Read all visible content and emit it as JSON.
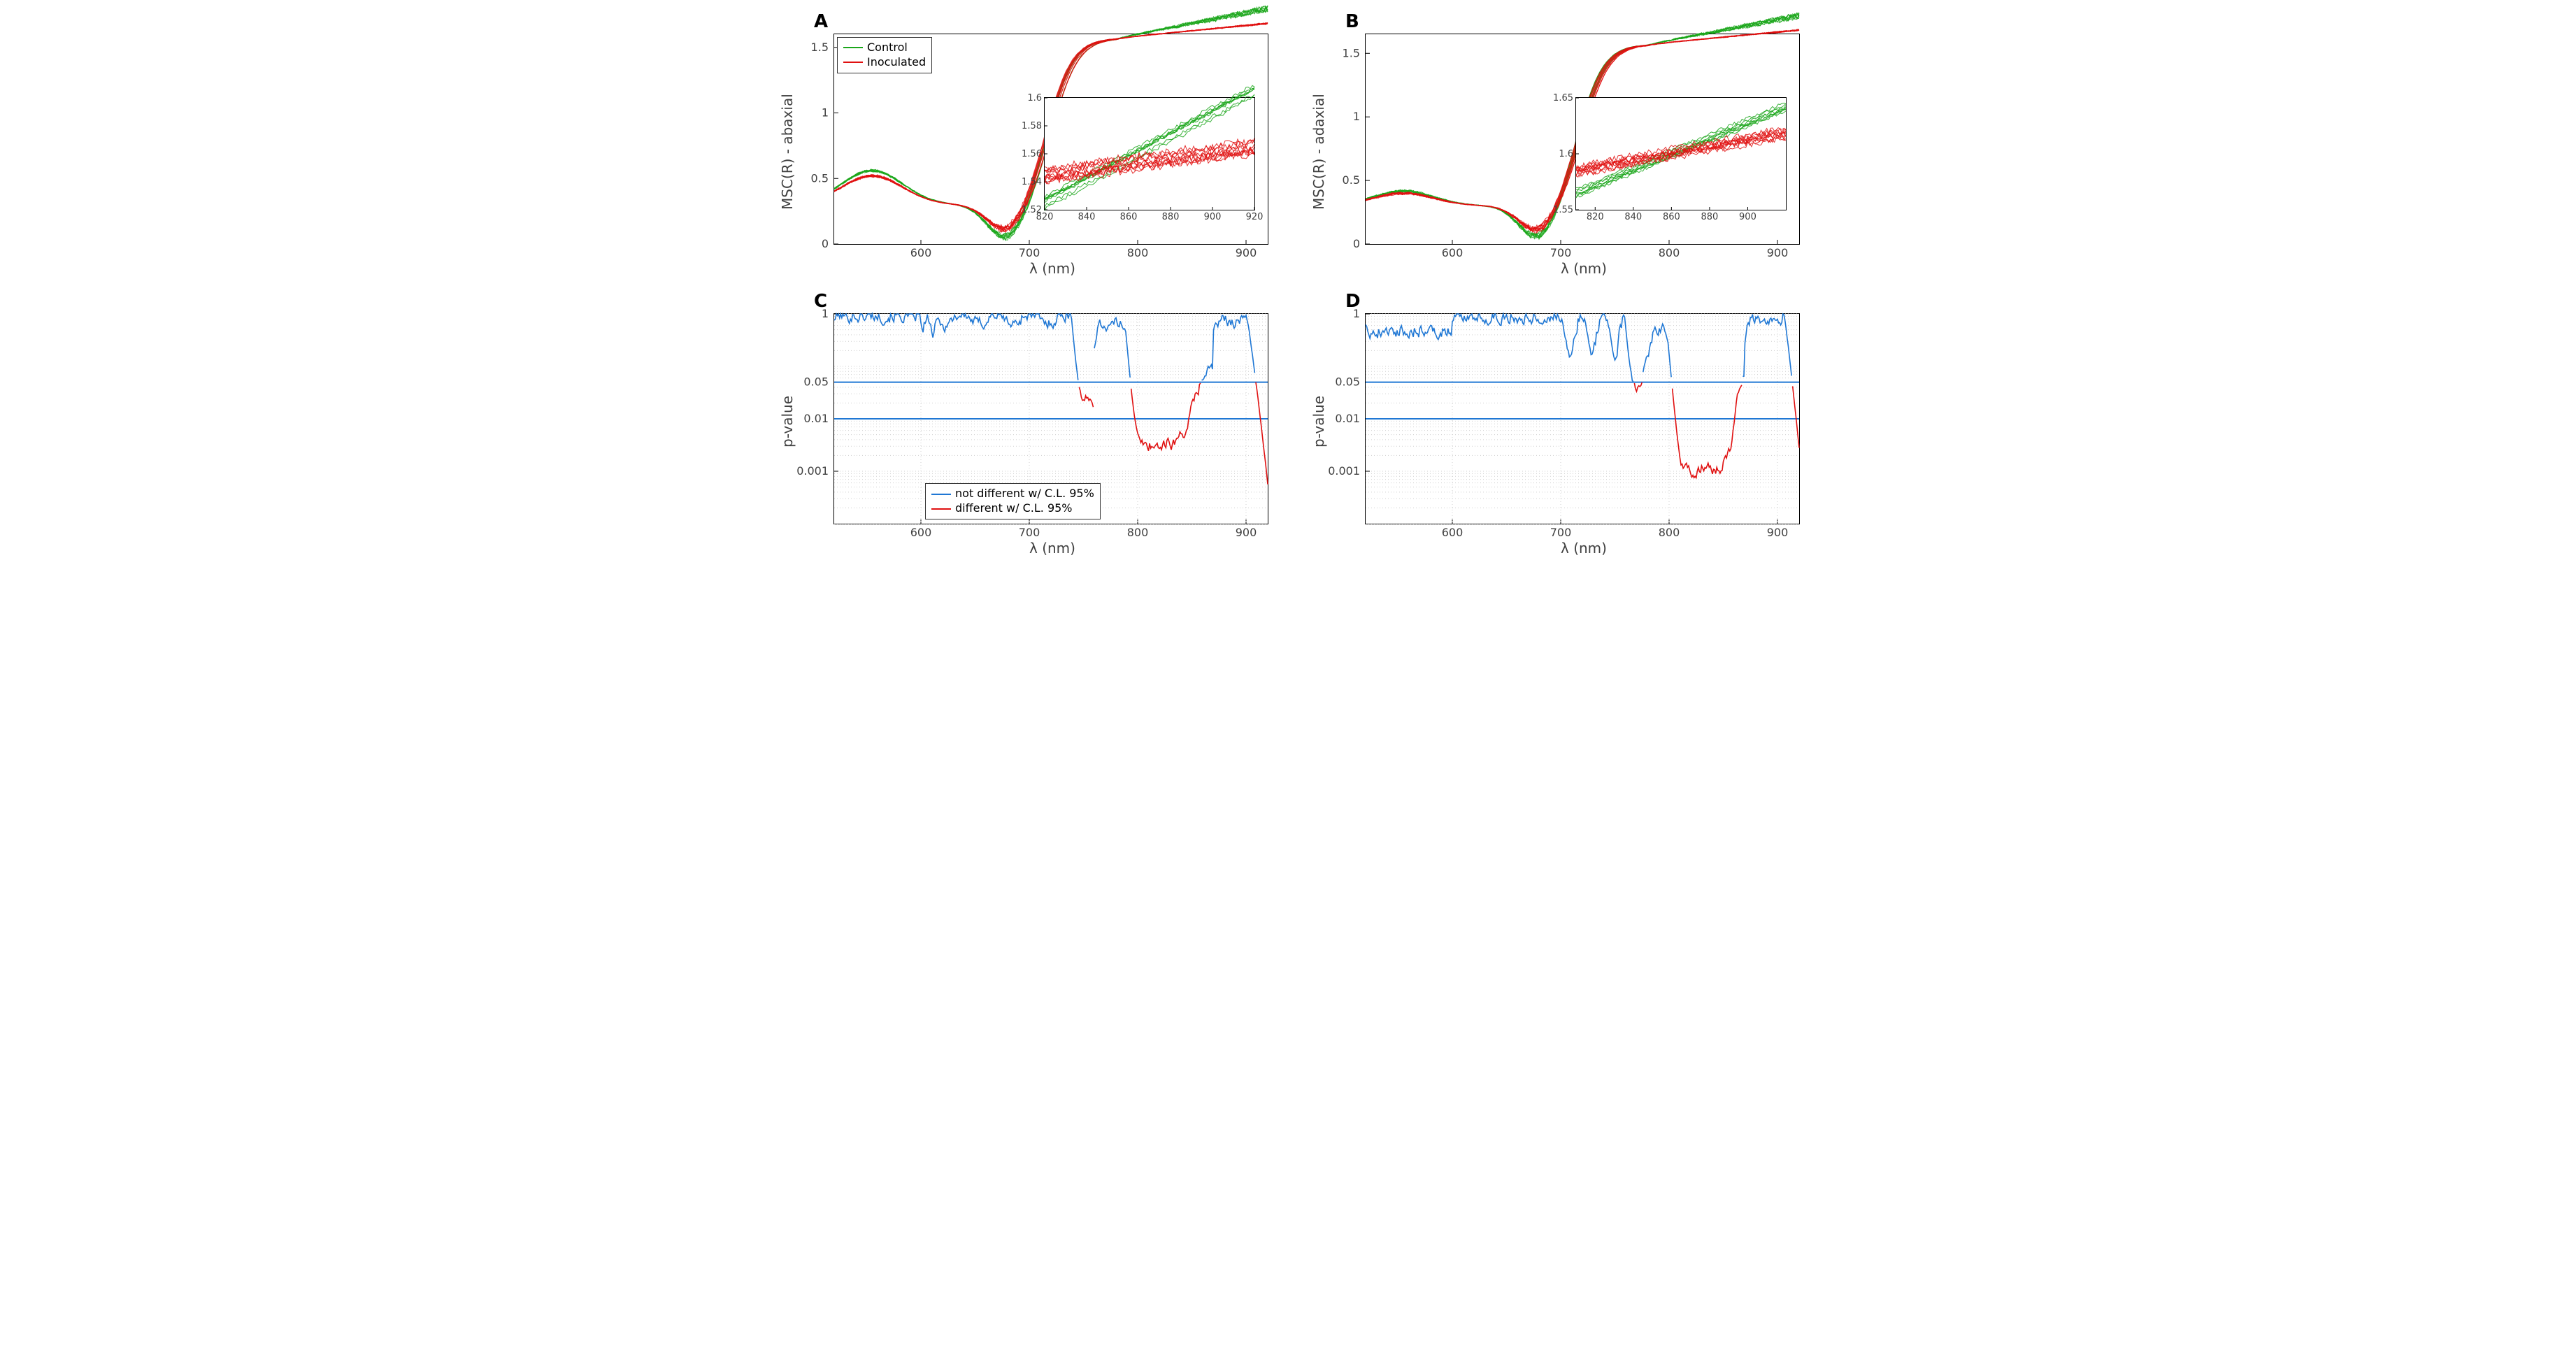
{
  "figure_background": "#ffffff",
  "font_family": "DejaVu Sans, Arial, sans-serif",
  "colors": {
    "control": "#1aa61a",
    "inoculated": "#e01010",
    "blue": "#1f77d4",
    "red": "#e01010",
    "axis": "#000000",
    "tick_text": "#404040",
    "grid": "#d0d0d0",
    "threshold": "#1f77d4"
  },
  "fontsizes": {
    "panel_label": 26,
    "axis_label": 20,
    "tick": 16,
    "legend": 16,
    "inset_tick": 13
  },
  "panelA": {
    "label": "A",
    "ylabel": "MSC(R) - abaxial",
    "xlabel": "λ (nm)",
    "xlim": [
      520,
      920
    ],
    "ylim": [
      0,
      1.6
    ],
    "xticks": [
      600,
      700,
      800,
      900
    ],
    "yticks": [
      0,
      0.5,
      1,
      1.5
    ],
    "type": "line",
    "legend": {
      "items": [
        {
          "label": "Control",
          "color": "#1aa61a"
        },
        {
          "label": "Inoculated",
          "color": "#e01010"
        }
      ],
      "position": "upper-left"
    },
    "inset": {
      "xlim": [
        820,
        920
      ],
      "ylim": [
        1.52,
        1.6
      ],
      "xticks": [
        820,
        840,
        860,
        880,
        900,
        920
      ],
      "yticks": [
        1.52,
        1.54,
        1.56,
        1.58,
        1.6
      ]
    }
  },
  "panelB": {
    "label": "B",
    "ylabel": "MSC(R) - adaxial",
    "xlabel": "λ (nm)",
    "xlim": [
      520,
      920
    ],
    "ylim": [
      0,
      1.65
    ],
    "xticks": [
      600,
      700,
      800,
      900
    ],
    "yticks": [
      0,
      0.5,
      1,
      1.5
    ],
    "type": "line",
    "inset": {
      "xlim": [
        810,
        920
      ],
      "ylim": [
        1.55,
        1.65
      ],
      "xticks": [
        820,
        840,
        860,
        880,
        900
      ],
      "yticks": [
        1.55,
        1.6,
        1.65
      ]
    }
  },
  "panelC": {
    "label": "C",
    "ylabel": "p-value",
    "xlabel": "λ (nm)",
    "xlim": [
      520,
      920
    ],
    "ylim": [
      0.0001,
      1
    ],
    "yscale": "log",
    "xticks": [
      600,
      700,
      800,
      900
    ],
    "yticks": [
      0.001,
      0.01,
      0.05,
      1
    ],
    "threshold_lines": [
      0.05,
      0.01
    ],
    "legend": {
      "items": [
        {
          "label": "not different w/ C.L. 95%",
          "color": "#1f77d4"
        },
        {
          "label": "different w/ C.L. 95%",
          "color": "#e01010"
        }
      ],
      "position": "lower-center"
    }
  },
  "panelD": {
    "label": "D",
    "ylabel": "p-value",
    "xlabel": "λ (nm)",
    "xlim": [
      520,
      920
    ],
    "ylim": [
      0.0001,
      1
    ],
    "yscale": "log",
    "xticks": [
      600,
      700,
      800,
      900
    ],
    "yticks": [
      0.001,
      0.01,
      0.05,
      1
    ],
    "threshold_lines": [
      0.05,
      0.01
    ]
  }
}
